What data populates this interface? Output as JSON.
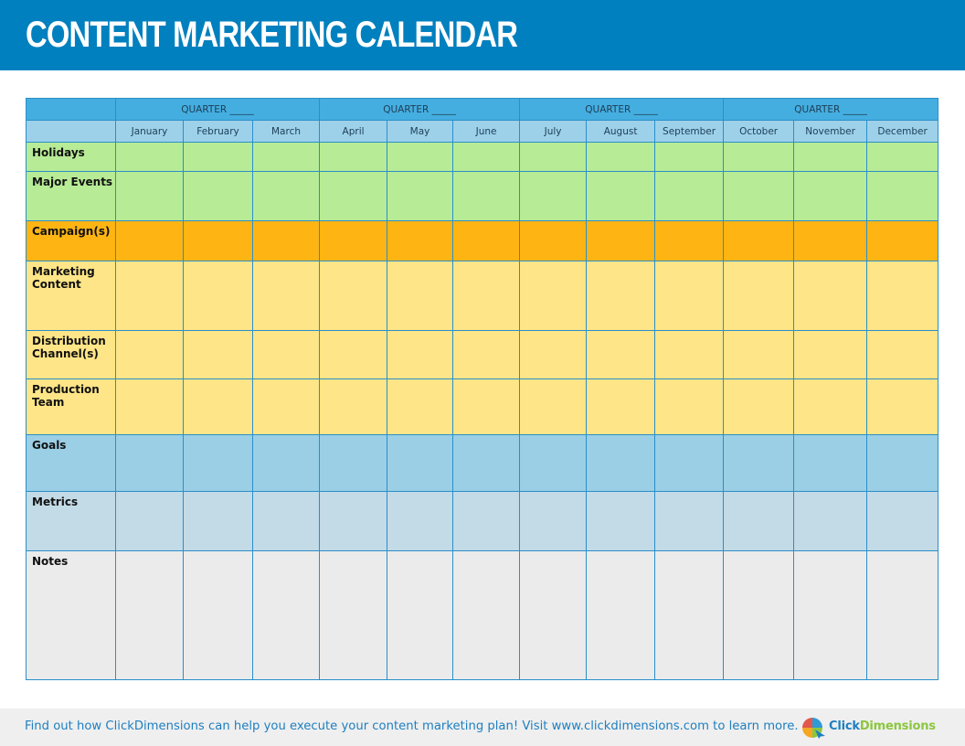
{
  "header": {
    "title": "CONTENT MARKETING CALENDAR"
  },
  "calendar": {
    "quarter_label": "QUARTER _____",
    "months": [
      "January",
      "February",
      "March",
      "April",
      "May",
      "June",
      "July",
      "August",
      "September",
      "October",
      "November",
      "December"
    ],
    "rows": [
      {
        "label": "Holidays",
        "color": "#b7eb96"
      },
      {
        "label": "Major Events",
        "color": "#b7eb96"
      },
      {
        "label": "Campaign(s)",
        "color": "#feb514"
      },
      {
        "label": "Marketing Content",
        "color": "#fee587"
      },
      {
        "label": "Distribution Channel(s)",
        "color": "#fee587"
      },
      {
        "label": "Production Team",
        "color": "#fee587"
      },
      {
        "label": "Goals",
        "color": "#9acfe5"
      },
      {
        "label": "Metrics",
        "color": "#c3dae7"
      },
      {
        "label": "Notes",
        "color": "#ebebeb"
      }
    ]
  },
  "footer": {
    "text": "Find out how ClickDimensions can help you execute your content marketing plan! Visit www.clickdimensions.com to learn more.",
    "logo_part1": "Click",
    "logo_part2": "Dimensions"
  },
  "colors": {
    "header_bg": "#0180bf",
    "quarter_bg": "#45aee0",
    "month_bg": "#9dd1ea",
    "brand_blue": "#1e7fc0",
    "brand_green": "#8cc63f"
  }
}
